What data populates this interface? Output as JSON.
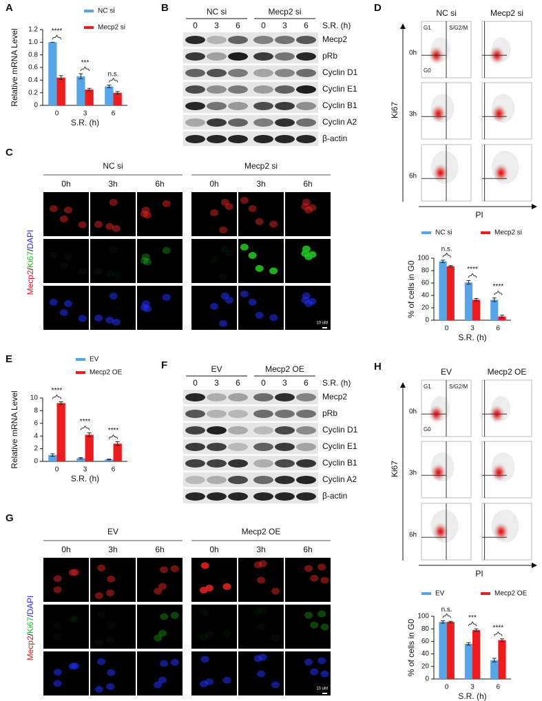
{
  "chart_data": [
    {
      "type": "bar",
      "label": "A",
      "y_label": "Relative mRNA Level",
      "x_label": "S.R. (h)",
      "categories": [
        "0",
        "3",
        "6"
      ],
      "series": [
        {
          "name": "NC si",
          "color": "#56a5e8",
          "values": [
            1.0,
            0.46,
            0.3
          ],
          "errors": [
            0.0,
            0.04,
            0.02
          ]
        },
        {
          "name": "Mecp2 si",
          "color": "#ee1c1c",
          "values": [
            0.44,
            0.25,
            0.2
          ],
          "errors": [
            0.03,
            0.02,
            0.02
          ]
        }
      ],
      "annotations": [
        "****",
        "***",
        "n.s."
      ],
      "ylim": [
        0,
        1.2
      ],
      "yticks": [
        0,
        0.2,
        0.4,
        0.6,
        0.8,
        {
          "value": 1,
          "label": "1.0"
        },
        1.2
      ],
      "legend": "top-right-vertical"
    },
    {
      "type": "bar",
      "y_label": "% of cells in G0",
      "x_label": "S.R. (h)",
      "categories": [
        "0",
        "3",
        "6"
      ],
      "series": [
        {
          "name": "NC si",
          "color": "#56a5e8",
          "values": [
            95,
            61,
            33
          ],
          "errors": [
            2,
            3,
            3
          ]
        },
        {
          "name": "Mecp2 si",
          "color": "#ee1c1c",
          "values": [
            87,
            33,
            6
          ],
          "errors": [
            1,
            2,
            2
          ]
        }
      ],
      "annotations": [
        "n.s.",
        "****",
        "****"
      ],
      "ylim": [
        0,
        100
      ],
      "yticks": [
        0,
        20,
        40,
        60,
        80,
        100
      ],
      "legend": "top-horizontal"
    },
    {
      "type": "bar",
      "label": "E",
      "y_label": "Relative mRNA Level",
      "x_label": "S.R. (h)",
      "categories": [
        "0",
        "3",
        "6"
      ],
      "series": [
        {
          "name": "EV",
          "color": "#56a5e8",
          "values": [
            1.0,
            0.5,
            0.3
          ],
          "errors": [
            0.2,
            0.1,
            0.05
          ]
        },
        {
          "name": "Mecp2 OE",
          "color": "#ee1c1c",
          "values": [
            9.2,
            4.2,
            2.8
          ],
          "errors": [
            0.2,
            0.3,
            0.3
          ]
        }
      ],
      "annotations": [
        "****",
        "****",
        "****"
      ],
      "ylim": [
        0,
        10
      ],
      "yticks": [
        0,
        2,
        4,
        6,
        8,
        10
      ],
      "legend": "top-right-vertical"
    },
    {
      "type": "bar",
      "y_label": "% of cells in G0",
      "x_label": "S.R. (h)",
      "categories": [
        "0",
        "3",
        "6"
      ],
      "series": [
        {
          "name": "EV",
          "color": "#56a5e8",
          "values": [
            91,
            56,
            30
          ],
          "errors": [
            2,
            2,
            3
          ]
        },
        {
          "name": "Mecp2 OE",
          "color": "#ee1c1c",
          "values": [
            91,
            78,
            62
          ],
          "errors": [
            1,
            2,
            2
          ]
        }
      ],
      "annotations": [
        "n.s.",
        "***",
        "****"
      ],
      "ylim": [
        0,
        100
      ],
      "yticks": [
        0,
        20,
        40,
        60,
        80,
        100
      ],
      "legend": "top-horizontal"
    }
  ],
  "figure": {
    "blots": [
      {
        "label": "B",
        "groups": [
          "NC si",
          "Mecp2 si"
        ],
        "times": [
          "0",
          "3",
          "6"
        ],
        "time_axis": "S.R. (h)",
        "bands": [
          "Mecp2",
          "pRb",
          "Cyclin D1",
          "Cyclin E1",
          "Cyclin B1",
          "Cyclin A2",
          "β-actin"
        ]
      },
      {
        "label": "F",
        "groups": [
          "EV",
          "Mecp2 OE"
        ],
        "times": [
          "0",
          "3",
          "6"
        ],
        "time_axis": "S.R. (h)",
        "bands": [
          "Mecp2",
          "pRb",
          "Cyclin D1",
          "Cyclin E1",
          "Cyclin B1",
          "Cyclin A2",
          "β-actin"
        ]
      }
    ],
    "flows": [
      {
        "label": "D",
        "groups": [
          "NC si",
          "Mecp2 si"
        ],
        "rows": [
          "0h",
          "3h",
          "6h"
        ],
        "gates": [
          "G1",
          "S/G2/M",
          "G0"
        ],
        "y_axis": "Ki67",
        "x_axis": "PI"
      },
      {
        "label": "H",
        "groups": [
          "EV",
          "Mecp2 OE"
        ],
        "rows": [
          "0h",
          "3h",
          "6h"
        ],
        "gates": [
          "G1",
          "S/G2/M",
          "G0"
        ],
        "y_axis": "Ki67",
        "x_axis": "PI"
      }
    ],
    "micrographs": [
      {
        "label": "C",
        "groups": [
          "NC si",
          "Mecp2 si"
        ],
        "times": [
          "0h",
          "3h",
          "6h"
        ],
        "channels": [
          "Mecp2",
          "Ki67",
          "DAPI"
        ],
        "separator": "/",
        "scale_bar": "10 uM"
      },
      {
        "label": "G",
        "groups": [
          "EV",
          "Mecp2 OE"
        ],
        "times": [
          "0h",
          "3h",
          "6h"
        ],
        "channels": [
          "Mecp2",
          "Ki67",
          "DAPI"
        ],
        "separator": "/",
        "scale_bar": "10 uM"
      }
    ]
  }
}
